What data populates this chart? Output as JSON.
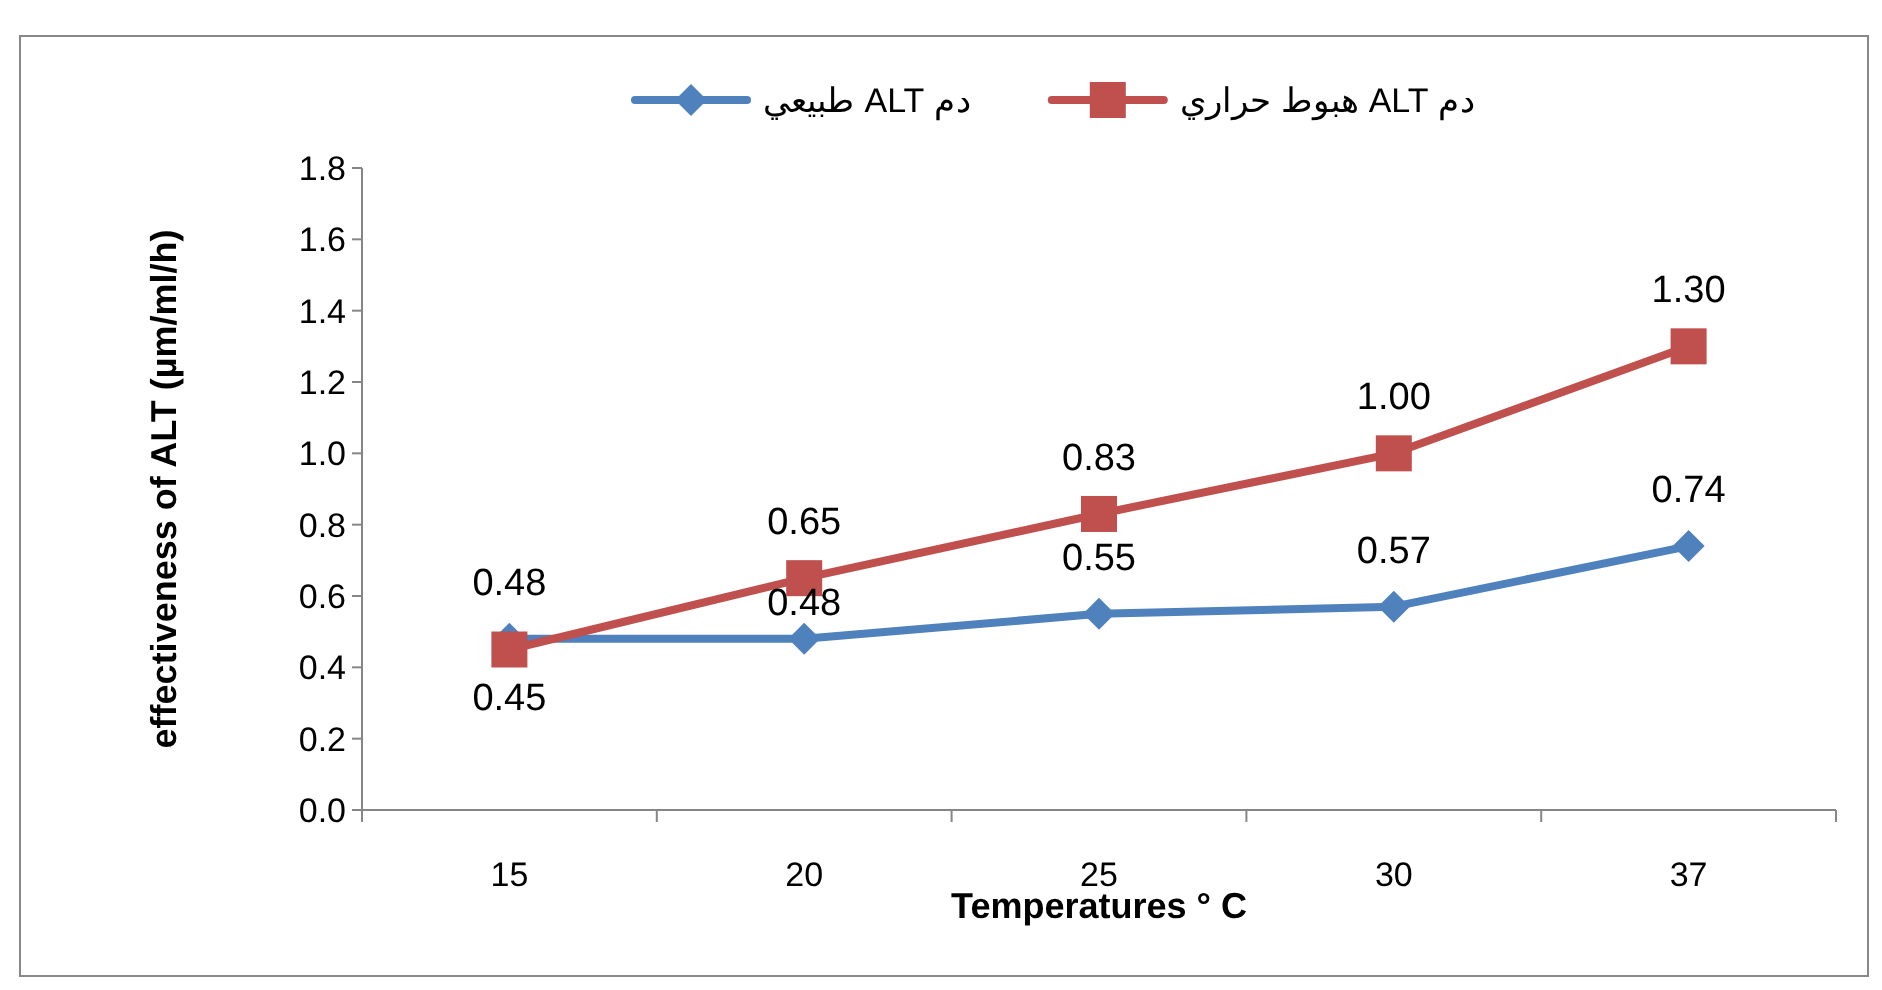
{
  "chart_data": {
    "type": "line",
    "xlabel": "Temperatures ° C",
    "ylabel": "effectiveness of ALT  (µm/ml/h)",
    "categories": [
      "15",
      "20",
      "25",
      "30",
      "37"
    ],
    "series": [
      {
        "name": "دم  ALT طبيعي",
        "color": "#4f81bd",
        "marker": "diamond",
        "values": [
          0.48,
          0.48,
          0.55,
          0.57,
          0.74
        ],
        "value_labels": [
          "0.48",
          "0.48",
          "0.55",
          "0.57",
          "0.74"
        ]
      },
      {
        "name": "دم ALT هبوط حراري",
        "color": "#c0504d",
        "marker": "square",
        "values": [
          0.45,
          0.65,
          0.83,
          1.0,
          1.3
        ],
        "value_labels": [
          "0.45",
          "0.65",
          "0.83",
          "1.00",
          "1.30"
        ]
      }
    ],
    "ylim": [
      0,
      1.8
    ],
    "yticks": [
      {
        "value": 0,
        "label": "0.0"
      },
      {
        "value": 0.2,
        "label": "0.2"
      },
      {
        "value": 0.4,
        "label": "0.4"
      },
      {
        "value": 0.6,
        "label": "0.6"
      },
      {
        "value": 0.8,
        "label": "0.8"
      },
      {
        "value": 1.0,
        "label": "1.0"
      },
      {
        "value": 1.2,
        "label": "1.2"
      },
      {
        "value": 1.4,
        "label": "1.4"
      },
      {
        "value": 1.6,
        "label": "1.6"
      },
      {
        "value": 1.8,
        "label": "1.8"
      }
    ],
    "legend": "top",
    "grid": false
  }
}
